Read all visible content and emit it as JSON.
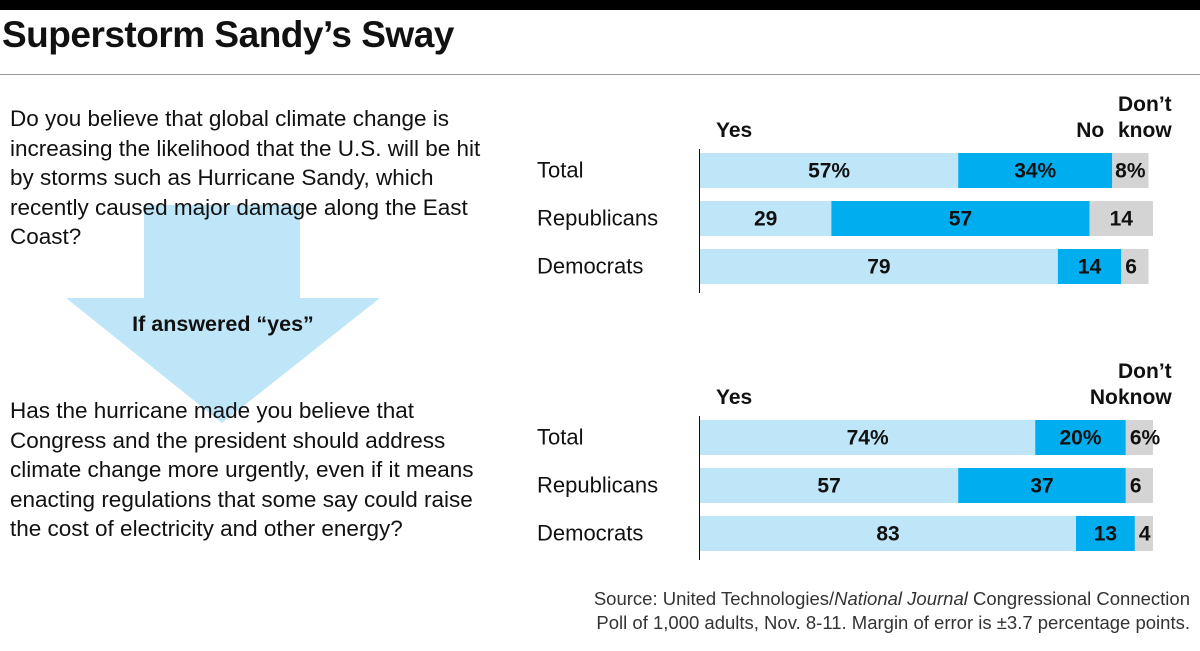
{
  "title": "Superstorm Sandy’s Sway",
  "question1": "Do you believe that global climate change is increasing the likelihood that the U.S. will be hit by storms such as Hurricane Sandy, which recently caused major damage along the East Coast?",
  "arrow_label": "If answered “yes”",
  "question2": "Has the hurricane made you believe that Congress and the president should address climate change more urgently, even if it means enacting regulations that some say could raise the cost of electricity and other energy?",
  "source": {
    "prefix": "Source: United Technologies/",
    "italic": "National Journal",
    "line1_suffix": " Congressional Connection",
    "line2": "Poll of 1,000 adults, Nov. 8-11. Margin of error is ±3.7 percentage points."
  },
  "colors": {
    "yes": "#bfe6f8",
    "no": "#00aeef",
    "dont_know": "#d4d4d4",
    "arrow": "#bfe6f8"
  },
  "chart_data": [
    {
      "type": "bar",
      "stacked": true,
      "orientation": "horizontal",
      "headers": [
        "Yes",
        "No",
        "Don’t know"
      ],
      "categories": [
        "Total",
        "Republicans",
        "Democrats"
      ],
      "series": [
        {
          "name": "Yes",
          "values": [
            57,
            29,
            79
          ],
          "labels": [
            "57%",
            "29",
            "79"
          ]
        },
        {
          "name": "No",
          "values": [
            34,
            57,
            14
          ],
          "labels": [
            "34%",
            "57",
            "14"
          ]
        },
        {
          "name": "Don’t know",
          "values": [
            8,
            14,
            6
          ],
          "labels": [
            "8%",
            "14",
            "6"
          ]
        }
      ],
      "xlim": [
        0,
        100
      ]
    },
    {
      "type": "bar",
      "stacked": true,
      "orientation": "horizontal",
      "headers": [
        "Yes",
        "No",
        "Don’t know"
      ],
      "categories": [
        "Total",
        "Republicans",
        "Democrats"
      ],
      "series": [
        {
          "name": "Yes",
          "values": [
            74,
            57,
            83
          ],
          "labels": [
            "74%",
            "57",
            "83"
          ]
        },
        {
          "name": "No",
          "values": [
            20,
            37,
            13
          ],
          "labels": [
            "20%",
            "37",
            "13"
          ]
        },
        {
          "name": "Don’t know",
          "values": [
            6,
            6,
            4
          ],
          "labels": [
            "6%",
            "6",
            "4"
          ]
        }
      ],
      "xlim": [
        0,
        100
      ]
    }
  ]
}
